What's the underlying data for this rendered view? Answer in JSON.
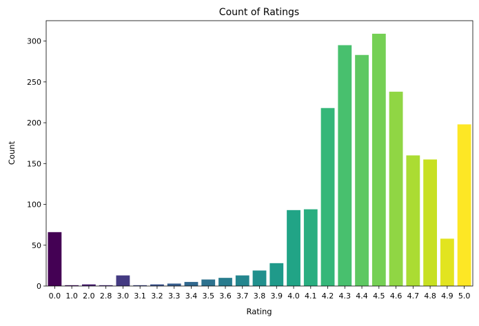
{
  "chart_data": {
    "type": "bar",
    "title": "Count of Ratings",
    "xlabel": "Rating",
    "ylabel": "Count",
    "categories": [
      "0.0",
      "1.0",
      "2.0",
      "2.8",
      "3.0",
      "3.1",
      "3.2",
      "3.3",
      "3.4",
      "3.5",
      "3.6",
      "3.7",
      "3.8",
      "3.9",
      "4.0",
      "4.1",
      "4.2",
      "4.3",
      "4.4",
      "4.5",
      "4.6",
      "4.7",
      "4.8",
      "4.9",
      "5.0"
    ],
    "values": [
      66,
      1,
      2,
      1,
      13,
      1,
      2,
      3,
      5,
      8,
      10,
      13,
      19,
      28,
      93,
      94,
      218,
      295,
      283,
      309,
      238,
      160,
      155,
      58,
      198
    ],
    "ylim": [
      0,
      325
    ],
    "yticks": [
      0,
      50,
      100,
      150,
      200,
      250,
      300
    ],
    "colors": [
      "#440154",
      "#481467",
      "#482576",
      "#453781",
      "#3f4788",
      "#39558c",
      "#32648e",
      "#2d718e",
      "#287d8e",
      "#238a8d",
      "#1f968b",
      "#20a386",
      "#29af7f",
      "#3dbc74",
      "#56c667",
      "#75d054",
      "#95d840",
      "#b8de29",
      "#dde318",
      "#fde725",
      "#21918c",
      "#3b528b",
      "#5ec962",
      "#fde725",
      "#000000"
    ],
    "grid": false,
    "legend": "none"
  }
}
